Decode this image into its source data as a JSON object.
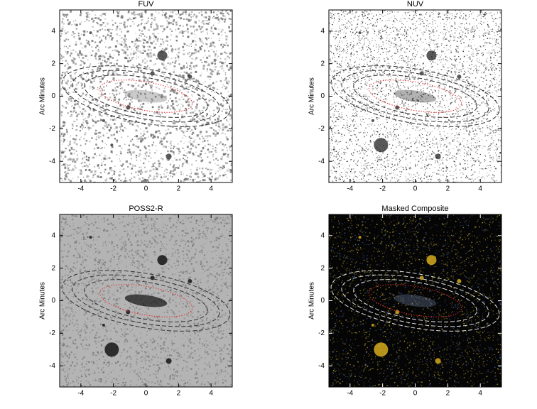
{
  "chart_data": [
    {
      "type": "image",
      "title": "FUV",
      "ylabel": "Arc Minutes",
      "xlim": [
        -5.3,
        5.3
      ],
      "ylim": [
        -5.3,
        5.3
      ],
      "xticks": [
        -4,
        -2,
        0,
        2,
        4
      ],
      "yticks": [
        -4,
        -2,
        0,
        2,
        4
      ],
      "background": "#ffffff",
      "color": "#6a6a6a"
    },
    {
      "type": "image",
      "title": "NUV",
      "ylabel": "Arc Minutes",
      "xlim": [
        -5.3,
        5.3
      ],
      "ylim": [
        -5.3,
        5.3
      ],
      "xticks": [
        -4,
        -2,
        0,
        2,
        4
      ],
      "yticks": [
        -4,
        -2,
        0,
        2,
        4
      ],
      "background": "#ffffff",
      "color": "#222222"
    },
    {
      "type": "image",
      "title": "POSS2-R",
      "ylabel": "Arc Minutes",
      "xlim": [
        -5.3,
        5.3
      ],
      "ylim": [
        -5.3,
        5.3
      ],
      "xticks": [
        -4,
        -2,
        0,
        2,
        4
      ],
      "yticks": [
        -4,
        -2,
        0,
        2,
        4
      ],
      "background": "#b4b4b4",
      "color": "#777777"
    },
    {
      "type": "image",
      "title": "Masked Composite",
      "ylabel": "Arc Minutes",
      "xlim": [
        -5.3,
        5.3
      ],
      "ylim": [
        -5.3,
        5.3
      ],
      "xticks": [
        -4,
        -2,
        0,
        2,
        4
      ],
      "yticks": [
        -4,
        -2,
        0,
        2,
        4
      ],
      "background": "#050505",
      "color": "#b8a030"
    }
  ]
}
